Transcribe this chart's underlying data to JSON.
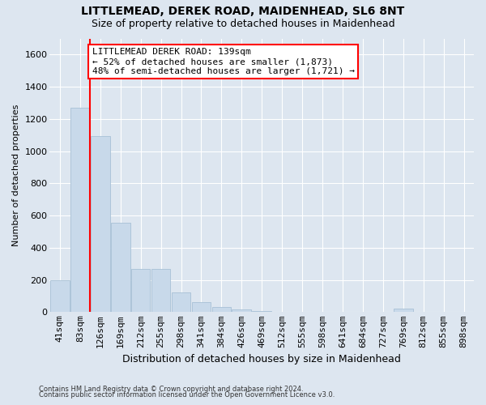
{
  "title": "LITTLEMEAD, DEREK ROAD, MAIDENHEAD, SL6 8NT",
  "subtitle": "Size of property relative to detached houses in Maidenhead",
  "xlabel": "Distribution of detached houses by size in Maidenhead",
  "ylabel": "Number of detached properties",
  "categories": [
    "41sqm",
    "83sqm",
    "126sqm",
    "169sqm",
    "212sqm",
    "255sqm",
    "298sqm",
    "341sqm",
    "384sqm",
    "426sqm",
    "469sqm",
    "512sqm",
    "555sqm",
    "598sqm",
    "641sqm",
    "684sqm",
    "727sqm",
    "769sqm",
    "812sqm",
    "855sqm",
    "898sqm"
  ],
  "values": [
    200,
    1270,
    1095,
    555,
    270,
    270,
    125,
    60,
    30,
    18,
    8,
    0,
    0,
    0,
    0,
    0,
    0,
    20,
    0,
    0,
    0
  ],
  "bar_color": "#c8d9ea",
  "bar_edge_color": "#a8c0d6",
  "redline_x": 1.5,
  "annotation_title": "LITTLEMEAD DEREK ROAD: 139sqm",
  "annotation_line1": "← 52% of detached houses are smaller (1,873)",
  "annotation_line2": "48% of semi-detached houses are larger (1,721) →",
  "ylim": [
    0,
    1700
  ],
  "yticks": [
    0,
    200,
    400,
    600,
    800,
    1000,
    1200,
    1400,
    1600
  ],
  "footer1": "Contains HM Land Registry data © Crown copyright and database right 2024.",
  "footer2": "Contains public sector information licensed under the Open Government Licence v3.0.",
  "bg_color": "#dde6f0",
  "title_fontsize": 10,
  "subtitle_fontsize": 9,
  "xlabel_fontsize": 9,
  "ylabel_fontsize": 8,
  "tick_fontsize": 8,
  "footer_fontsize": 6,
  "annot_fontsize": 8
}
